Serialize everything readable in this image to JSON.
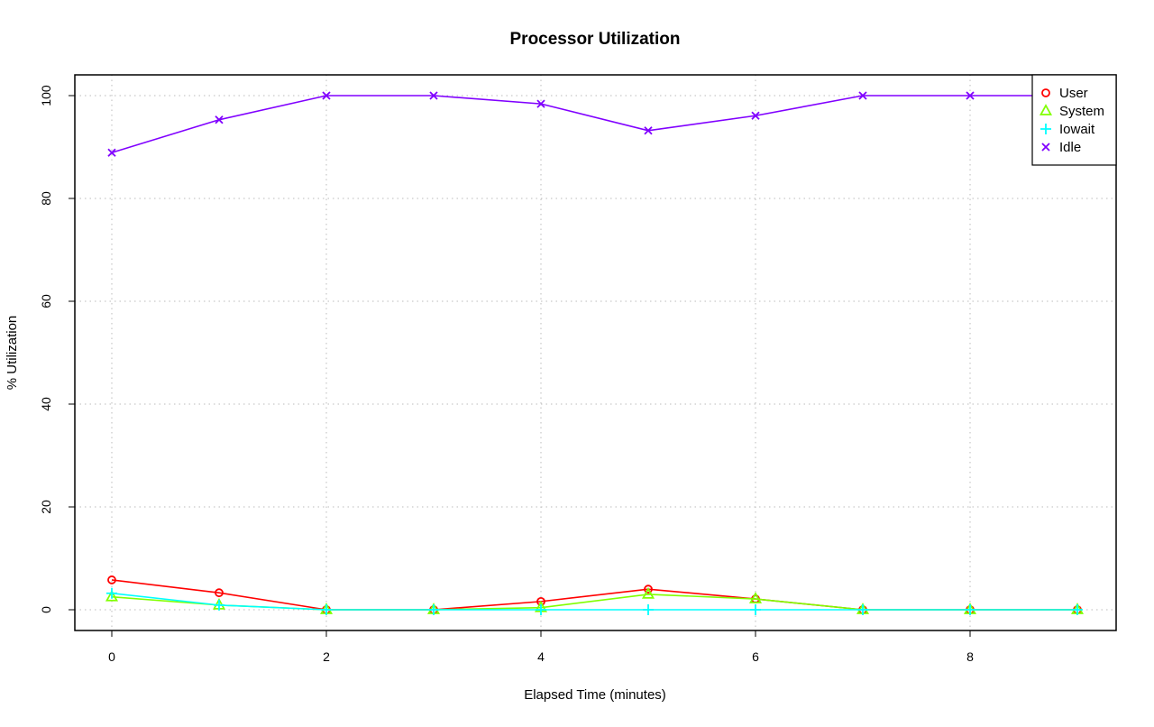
{
  "chart_data": {
    "type": "line",
    "title": "Processor Utilization",
    "xlabel": "Elapsed Time (minutes)",
    "ylabel": "% Utilization",
    "xlim": [
      -0.35,
      9.35
    ],
    "ylim": [
      -4,
      104
    ],
    "x_ticks": [
      0,
      2,
      4,
      6,
      8
    ],
    "y_ticks": [
      0,
      20,
      40,
      60,
      80,
      100
    ],
    "grid": true,
    "legend_position": "top-right",
    "x": [
      0,
      1,
      2,
      3,
      4,
      5,
      6,
      7,
      8,
      9
    ],
    "series": [
      {
        "name": "User",
        "color": "#ff0000",
        "marker": "circle",
        "values": [
          5.8,
          3.3,
          0,
          0,
          1.6,
          4.0,
          2.1,
          0,
          0,
          0
        ]
      },
      {
        "name": "System",
        "color": "#80ff00",
        "marker": "triangle",
        "values": [
          2.5,
          0.9,
          0,
          0,
          0.4,
          3.0,
          2.1,
          0,
          0,
          0
        ]
      },
      {
        "name": "Iowait",
        "color": "#00ffff",
        "marker": "plus",
        "values": [
          3.2,
          0.9,
          0,
          0,
          0,
          0,
          0,
          0,
          0,
          0
        ]
      },
      {
        "name": "Idle",
        "color": "#8000ff",
        "marker": "cross",
        "values": [
          88.9,
          95.3,
          100,
          100,
          98.4,
          93.2,
          96.1,
          100,
          100,
          100
        ]
      }
    ]
  }
}
